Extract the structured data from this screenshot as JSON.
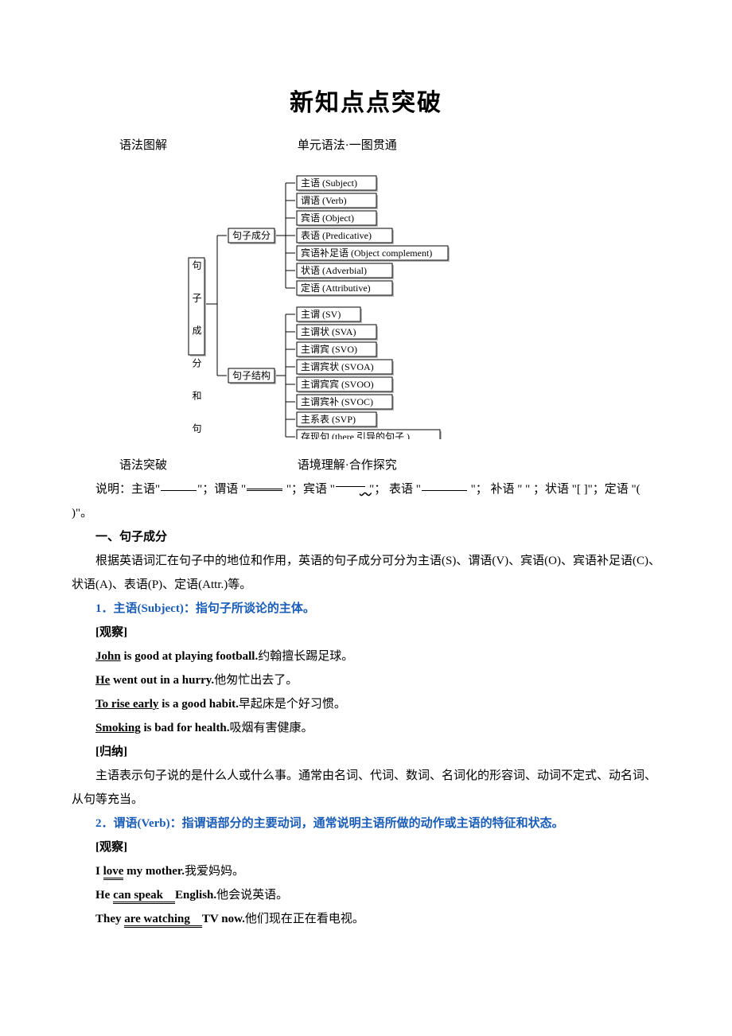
{
  "title": "新知点点突破",
  "header1": {
    "left": "语法图解",
    "right": "单元语法·一图贯通"
  },
  "diagram": {
    "root": "句子成分和句子结构",
    "branch1": {
      "label": "句子成分",
      "items": [
        "主语 (Subject)",
        "谓语 (Verb)",
        "宾语 (Object)",
        "表语 (Predicative)",
        "宾语补足语 (Object complement)",
        "状语 (Adverbial)",
        "定语 (Attributive)"
      ]
    },
    "branch2": {
      "label": "句子结构",
      "items": [
        "主谓 (SV)",
        "主谓状 (SVA)",
        "主谓宾 (SVO)",
        "主谓宾状 (SVOA)",
        "主谓宾宾 (SVOO)",
        "主谓宾补 (SVOC)",
        "主系表 (SVP)",
        "存现句 (there 引导的句子 )"
      ]
    }
  },
  "header2": {
    "left": "语法突破",
    "right": "语境理解·合作探究"
  },
  "legend": {
    "pre": "说明：主语\"",
    "p2": "\"；谓语 \"",
    "p3": " \"；宾语 \"",
    "p4": " \"；  表语 \"",
    "p5": "  \"；  补语 \"     \" ；状语 \"[   ]\"；定语 \"(       )\"。"
  },
  "sec1": "一、句子成分",
  "para1": "根据英语词汇在句子中的地位和作用，英语的句子成分可分为主语(S)、谓语(V)、宾语(O)、宾语补足语(C)、状语(A)、表语(P)、定语(Attr.)等。",
  "point1": "1．主语(Subject)：指句子所谈论的主体。",
  "obs": "[观察]",
  "ex1": {
    "s": "John",
    "rest": " is good at playing football.",
    "zh": "约翰擅长踢足球。"
  },
  "ex2": {
    "s": "He",
    "rest": " went out in a hurry.",
    "zh": "他匆忙出去了。"
  },
  "ex3": {
    "s": "To rise early",
    "rest": " is a good habit.",
    "zh": "早起床是个好习惯。"
  },
  "ex4": {
    "s": "Smoking",
    "rest": " is bad for health.",
    "zh": "吸烟有害健康。"
  },
  "sum": "[归纳]",
  "sum1": "主语表示句子说的是什么人或什么事。通常由名词、代词、数词、名词化的形容词、动词不定式、动名词、从句等充当。",
  "point2": "2．谓语(Verb)：指谓语部分的主要动词，通常说明主语所做的动作或主语的特征和状态。",
  "ex5": {
    "pre": "I ",
    "v": "love",
    "rest": " my mother.",
    "zh": "我爱妈妈。"
  },
  "ex6": {
    "pre": "He ",
    "v": "can speak　",
    "rest": "English.",
    "zh": "他会说英语。"
  },
  "ex7": {
    "pre": "They ",
    "v": "are watching　",
    "rest": "TV now.",
    "zh": "他们现在正在看电视。"
  }
}
